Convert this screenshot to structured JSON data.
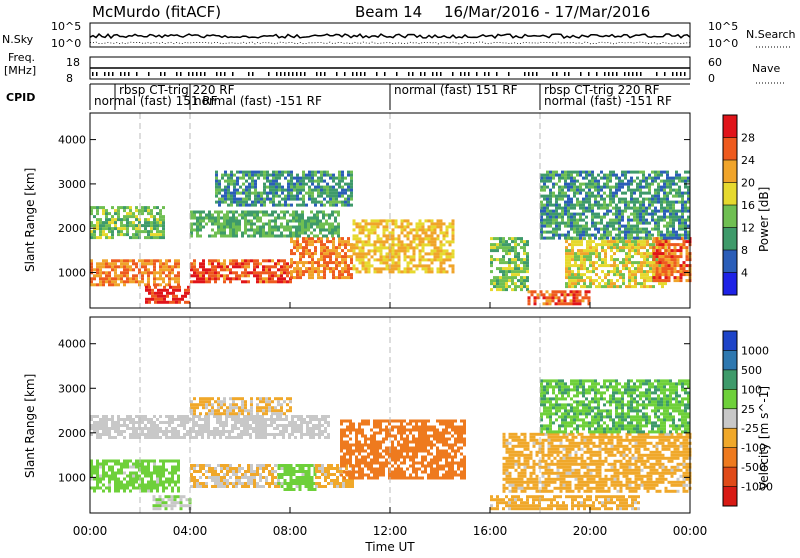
{
  "header": {
    "station": "McMurdo (fitACF)",
    "beam_label": "Beam 14",
    "date_range": "16/Mar/2016 - 17/Mar/2016"
  },
  "top_panels": {
    "nsky_label": "N.Sky",
    "nsky_ticks": [
      "10^5",
      "10^0"
    ],
    "nsearch_label": "N.Search",
    "nsearch_ticks": [
      "10^5",
      "10^0"
    ],
    "freq_label": "Freq.",
    "freq_unit": "[MHz]",
    "freq_ticks": [
      "18",
      "8"
    ],
    "nave_label": "Nave",
    "nave_ticks": [
      "60",
      "0"
    ],
    "cpid_label": "CPID",
    "cpid_segments": [
      {
        "text": "normal (fast) 151 RF",
        "row": 2,
        "start_h": 0.0
      },
      {
        "text": "rbsp CT-trig 220 RF",
        "row": 1,
        "start_h": 1.0
      },
      {
        "text": "normal (fast) -151 RF",
        "row": 2,
        "start_h": 4.0
      },
      {
        "text": "normal (fast) 151 RF",
        "row": 1,
        "start_h": 12.0
      },
      {
        "text": "rbsp CT-trig 220 RF",
        "row": 1,
        "start_h": 18.0
      },
      {
        "text": "normal (fast) -151 RF",
        "row": 2,
        "start_h": 18.0
      }
    ]
  },
  "chart_data": {
    "type": "heatmap",
    "x_axis": {
      "label": "Time UT",
      "range_hours": [
        0,
        24
      ],
      "ticks": [
        "00:00",
        "04:00",
        "08:00",
        "12:00",
        "16:00",
        "20:00",
        "00:00"
      ]
    },
    "y_axis": {
      "label": "Slant Range [km]",
      "range": [
        200,
        4600
      ],
      "ticks": [
        1000,
        2000,
        3000,
        4000
      ]
    },
    "grid_dashes_at_hours": [
      2,
      4,
      12,
      18
    ],
    "panels": [
      {
        "name": "power",
        "colorbar_label": "Power [dB]",
        "colorbar_ticks": [
          "4",
          "8",
          "12",
          "16",
          "20",
          "24",
          "28"
        ],
        "colorbar_colors": [
          "#1e22e6",
          "#2a5db8",
          "#3e9a6a",
          "#6fbf52",
          "#e6d92e",
          "#f0a42a",
          "#ee5a1e",
          "#e0141a"
        ],
        "color_range": [
          0,
          32
        ],
        "regions": [
          {
            "t": [
              0.0,
              3.5
            ],
            "r": [
              700,
              1300
            ],
            "v": 24
          },
          {
            "t": [
              2.2,
              4.0
            ],
            "r": [
              300,
              700
            ],
            "v": 28
          },
          {
            "t": [
              4.0,
              8.0
            ],
            "r": [
              800,
              1300
            ],
            "v": 27
          },
          {
            "t": [
              8.0,
              10.5
            ],
            "r": [
              900,
              1800
            ],
            "v": 24
          },
          {
            "t": [
              10.5,
              14.5
            ],
            "r": [
              1000,
              2200
            ],
            "v": 20
          },
          {
            "t": [
              4.0,
              10.0
            ],
            "r": [
              1800,
              2400
            ],
            "v": 12
          },
          {
            "t": [
              0.0,
              3.0
            ],
            "r": [
              1800,
              2500
            ],
            "v": 14
          },
          {
            "t": [
              5.0,
              10.5
            ],
            "r": [
              2500,
              3300
            ],
            "v": 10
          },
          {
            "t": [
              16.0,
              17.5
            ],
            "r": [
              600,
              1800
            ],
            "v": 14
          },
          {
            "t": [
              17.5,
              20.0
            ],
            "r": [
              300,
              600
            ],
            "v": 26
          },
          {
            "t": [
              19.0,
              23.0
            ],
            "r": [
              700,
              1800
            ],
            "v": 18
          },
          {
            "t": [
              22.5,
              24.0
            ],
            "r": [
              800,
              1800
            ],
            "v": 26
          },
          {
            "t": [
              18.0,
              24.0
            ],
            "r": [
              1800,
              3300
            ],
            "v": 10
          }
        ]
      },
      {
        "name": "velocity",
        "colorbar_label": "Velocity [m s^-1]",
        "colorbar_ticks": [
          "1000",
          "500",
          "100",
          "25",
          "-25",
          "-100",
          "-500",
          "-1000"
        ],
        "colorbar_colors": [
          "#1e44c8",
          "#2e78b0",
          "#3e9a6a",
          "#6ed03a",
          "#c8c8c8",
          "#f0a82a",
          "#ee7a1e",
          "#e04a18",
          "#d81a14"
        ],
        "color_range": [
          -1000,
          1000
        ],
        "regions": [
          {
            "t": [
              0.0,
              3.5
            ],
            "r": [
              700,
              1400
            ],
            "v": 200
          },
          {
            "t": [
              2.5,
              4.0
            ],
            "r": [
              300,
              600
            ],
            "v": 80
          },
          {
            "t": [
              4.0,
              7.5
            ],
            "r": [
              800,
              1300
            ],
            "v": -120
          },
          {
            "t": [
              7.5,
              9.0
            ],
            "r": [
              700,
              1300
            ],
            "v": 200
          },
          {
            "t": [
              9.0,
              10.5
            ],
            "r": [
              800,
              1300
            ],
            "v": -150
          },
          {
            "t": [
              10.0,
              15.0
            ],
            "r": [
              1000,
              2300
            ],
            "v": -450
          },
          {
            "t": [
              0.0,
              9.5
            ],
            "r": [
              1900,
              2400
            ],
            "v": 0
          },
          {
            "t": [
              4.0,
              8.0
            ],
            "r": [
              2400,
              2800
            ],
            "v": -150
          },
          {
            "t": [
              16.0,
              22.0
            ],
            "r": [
              300,
              600
            ],
            "v": -200
          },
          {
            "t": [
              16.5,
              24.0
            ],
            "r": [
              700,
              2000
            ],
            "v": -200
          },
          {
            "t": [
              18.0,
              24.0
            ],
            "r": [
              2000,
              3200
            ],
            "v": 300
          }
        ]
      }
    ]
  }
}
